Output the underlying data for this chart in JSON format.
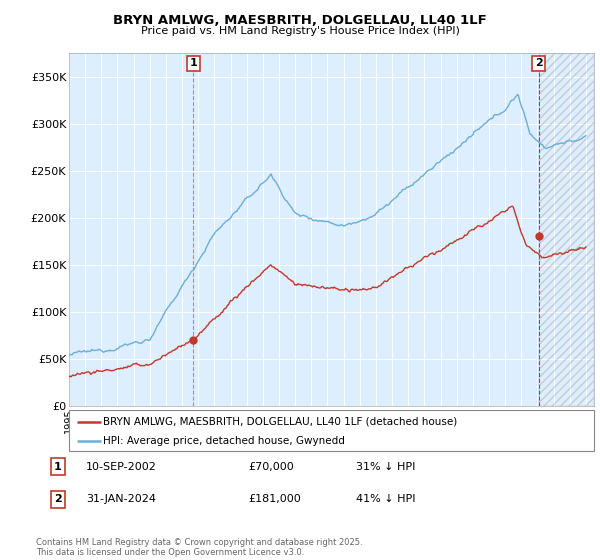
{
  "title1": "BRYN AMLWG, MAESBRITH, DOLGELLAU, LL40 1LF",
  "title2": "Price paid vs. HM Land Registry's House Price Index (HPI)",
  "legend_label1": "BRYN AMLWG, MAESBRITH, DOLGELLAU, LL40 1LF (detached house)",
  "legend_label2": "HPI: Average price, detached house, Gwynedd",
  "annotation1_date": "10-SEP-2002",
  "annotation1_price": "£70,000",
  "annotation1_hpi": "31% ↓ HPI",
  "annotation1_year": 2002.7,
  "annotation1_value": 70000,
  "annotation2_date": "31-JAN-2024",
  "annotation2_price": "£181,000",
  "annotation2_hpi": "41% ↓ HPI",
  "annotation2_year": 2024.08,
  "annotation2_value": 181000,
  "footer": "Contains HM Land Registry data © Crown copyright and database right 2025.\nThis data is licensed under the Open Government Licence v3.0.",
  "hpi_color": "#6baed6",
  "price_color": "#c0392b",
  "annotation_box_color": "#c0392b",
  "ylim_max": 375000,
  "xlim_min": 1995.0,
  "xlim_max": 2027.5,
  "background_color": "#ffffff",
  "grid_color": "#cccccc",
  "chart_bg_color": "#ddeeff"
}
